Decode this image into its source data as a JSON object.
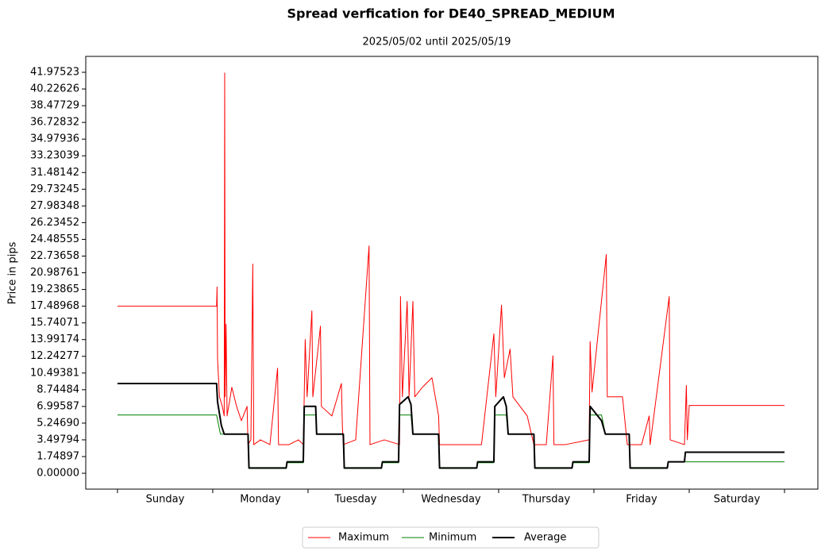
{
  "chart_data": {
    "type": "line",
    "title": "Spread verfication for DE40_SPREAD_MEDIUM",
    "subtitle": "2025/05/02 until 2025/05/19",
    "y_label": "Price in pips",
    "categories": [
      "Sunday",
      "Monday",
      "Tuesday",
      "Wednesday",
      "Thursday",
      "Friday",
      "Saturday"
    ],
    "xlim": [
      -0.333,
      7.35
    ],
    "xticks": [
      0,
      1,
      2,
      3,
      4,
      5,
      6,
      7
    ],
    "ylim": [
      -1.66,
      43.64
    ],
    "yticks": [
      {
        "value": 0,
        "label": "0.00000"
      },
      {
        "value": 1.74897,
        "label": "1.74897"
      },
      {
        "value": 3.49794,
        "label": "3.49794"
      },
      {
        "value": 5.2469,
        "label": "5.24690"
      },
      {
        "value": 6.99587,
        "label": "6.99587"
      },
      {
        "value": 8.74484,
        "label": "8.74484"
      },
      {
        "value": 10.49381,
        "label": "10.49381"
      },
      {
        "value": 12.24277,
        "label": "12.24277"
      },
      {
        "value": 13.99174,
        "label": "13.99174"
      },
      {
        "value": 15.74071,
        "label": "15.74071"
      },
      {
        "value": 17.48968,
        "label": "17.48968"
      },
      {
        "value": 19.23865,
        "label": "19.23865"
      },
      {
        "value": 20.98761,
        "label": "20.98761"
      },
      {
        "value": 22.73658,
        "label": "22.73658"
      },
      {
        "value": 24.48555,
        "label": "24.48555"
      },
      {
        "value": 26.23452,
        "label": "26.23452"
      },
      {
        "value": 27.98348,
        "label": "27.98348"
      },
      {
        "value": 29.73245,
        "label": "29.73245"
      },
      {
        "value": 31.48142,
        "label": "31.48142"
      },
      {
        "value": 33.23039,
        "label": "33.23039"
      },
      {
        "value": 34.97936,
        "label": "34.97936"
      },
      {
        "value": 36.72832,
        "label": "36.72832"
      },
      {
        "value": 38.47729,
        "label": "38.47729"
      },
      {
        "value": 40.22626,
        "label": "40.22626"
      },
      {
        "value": 41.97523,
        "label": "41.97523"
      }
    ],
    "series": [
      {
        "name": "Maximum",
        "color": "#ff0000",
        "width": 1,
        "x": [
          0,
          1.04,
          1.045,
          1.05,
          1.07,
          1.1,
          1.12,
          1.125,
          1.13,
          1.14,
          1.15,
          1.2,
          1.25,
          1.3,
          1.36,
          1.37,
          1.4,
          1.42,
          1.43,
          1.5,
          1.6,
          1.68,
          1.69,
          1.8,
          1.9,
          1.95,
          1.96,
          1.97,
          1.99,
          2.04,
          2.05,
          2.13,
          2.14,
          2.25,
          2.35,
          2.36,
          2.37,
          2.5,
          2.64,
          2.65,
          2.8,
          2.96,
          2.97,
          2.99,
          3.04,
          3.06,
          3.1,
          3.12,
          3.2,
          3.3,
          3.37,
          3.38,
          3.5,
          3.7,
          3.82,
          3.95,
          3.97,
          4.03,
          4.06,
          4.12,
          4.15,
          4.3,
          4.37,
          4.5,
          4.57,
          4.58,
          4.7,
          4.95,
          4.96,
          4.98,
          5.13,
          5.14,
          5.3,
          5.35,
          5.5,
          5.58,
          5.59,
          5.79,
          5.8,
          5.95,
          5.97,
          5.98,
          6.0,
          7.0
        ],
        "values": [
          17.49,
          17.49,
          19.5,
          12,
          8,
          7,
          6,
          41.9,
          8,
          15.6,
          6,
          9,
          7,
          5.5,
          7,
          3,
          3.5,
          21.9,
          3,
          3.5,
          3,
          11,
          3,
          3,
          3.5,
          3,
          8.2,
          14,
          8,
          17,
          8,
          15.4,
          7,
          6,
          9.4,
          5,
          3,
          3.5,
          23.8,
          3,
          3.5,
          3,
          18.5,
          8,
          18,
          8,
          18,
          8,
          9,
          10,
          6,
          3,
          3,
          3,
          3,
          14.6,
          8,
          17.6,
          10,
          13,
          8,
          6,
          3,
          3,
          12.3,
          3,
          3,
          3.5,
          13.8,
          8.5,
          22.9,
          8,
          8,
          3,
          3,
          6,
          3,
          18.5,
          3.5,
          3,
          9.2,
          3.5,
          7.1,
          7.1
        ]
      },
      {
        "name": "Minimum",
        "color": "#008000",
        "width": 1,
        "x": [
          0,
          1.04,
          1.08,
          1.37,
          1.38,
          1.77,
          1.78,
          1.95,
          1.96,
          2.08,
          2.09,
          2.37,
          2.38,
          2.77,
          2.78,
          2.95,
          2.96,
          3.08,
          3.1,
          3.37,
          3.38,
          3.77,
          3.78,
          3.95,
          3.96,
          4.08,
          4.1,
          4.37,
          4.38,
          4.77,
          4.78,
          4.95,
          4.96,
          5.08,
          5.12,
          5.37,
          5.38,
          5.77,
          5.78,
          7.0
        ],
        "values": [
          6.1,
          6.1,
          4.1,
          4.1,
          0.5,
          0.5,
          1.1,
          1.1,
          6.1,
          6.1,
          4.1,
          4.1,
          0.5,
          0.5,
          1.1,
          1.1,
          6.1,
          6.1,
          4.1,
          4.1,
          0.5,
          0.5,
          1.1,
          1.1,
          6.1,
          6.1,
          4.1,
          4.1,
          0.5,
          0.5,
          1.1,
          1.1,
          6.1,
          6.1,
          4.1,
          4.1,
          0.5,
          0.5,
          1.2,
          1.2
        ]
      },
      {
        "name": "Average",
        "color": "#000000",
        "width": 2,
        "x": [
          0,
          1.04,
          1.05,
          1.09,
          1.12,
          1.37,
          1.38,
          1.77,
          1.78,
          1.95,
          1.96,
          2.08,
          2.09,
          2.37,
          2.38,
          2.77,
          2.78,
          2.95,
          2.96,
          3.05,
          3.08,
          3.1,
          3.37,
          3.38,
          3.77,
          3.78,
          3.95,
          3.96,
          4.05,
          4.08,
          4.1,
          4.37,
          4.38,
          4.77,
          4.78,
          4.95,
          4.96,
          5.08,
          5.12,
          5.37,
          5.38,
          5.77,
          5.78,
          5.95,
          5.96,
          7.0
        ],
        "values": [
          9.4,
          9.4,
          7.5,
          5.0,
          4.1,
          4.1,
          0.55,
          0.55,
          1.2,
          1.2,
          7.0,
          7.0,
          4.1,
          4.1,
          0.55,
          0.55,
          1.2,
          1.2,
          7.2,
          8.0,
          7.2,
          4.1,
          4.1,
          0.55,
          0.55,
          1.2,
          1.2,
          7.0,
          8.0,
          7.0,
          4.1,
          4.1,
          0.55,
          0.55,
          1.2,
          1.2,
          7.0,
          5.5,
          4.1,
          4.1,
          0.55,
          0.55,
          1.2,
          1.2,
          2.2,
          2.2
        ]
      }
    ]
  }
}
